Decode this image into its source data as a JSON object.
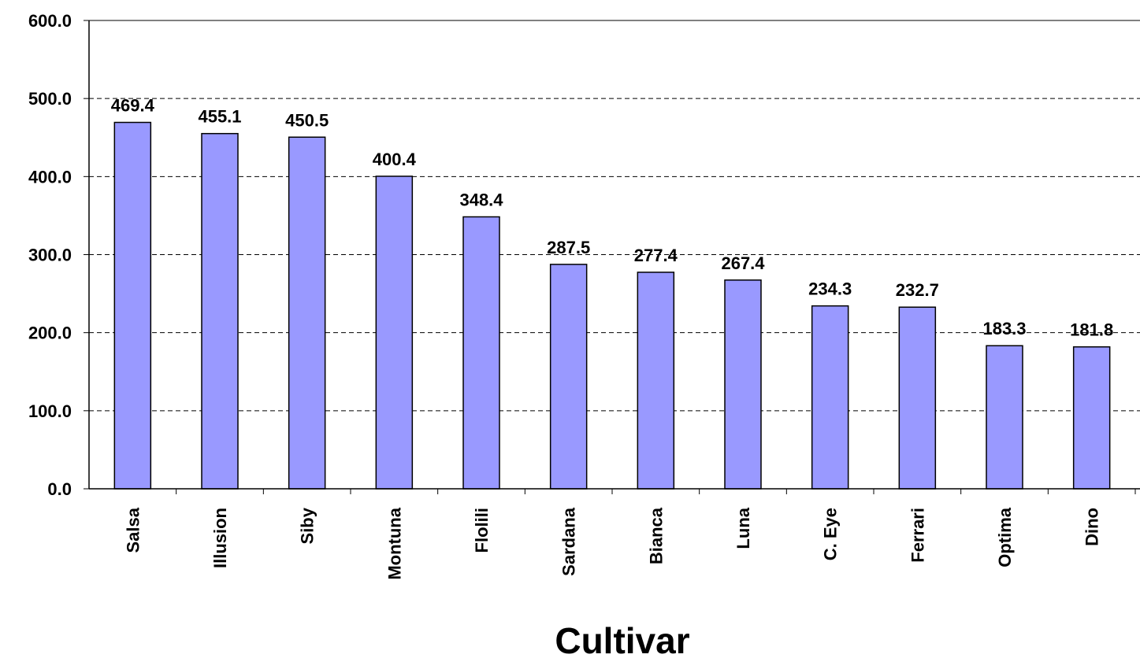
{
  "chart_data": {
    "type": "bar",
    "categories": [
      "Salsa",
      "Illusion",
      "Siby",
      "Montuna",
      "Flolili",
      "Sardana",
      "Bianca",
      "Luna",
      "C. Eye",
      "Ferrari",
      "Optima",
      "Dino"
    ],
    "values": [
      469.4,
      455.1,
      450.5,
      400.4,
      348.4,
      287.5,
      277.4,
      267.4,
      234.3,
      232.7,
      183.3,
      181.8
    ],
    "data_labels": [
      "469.4",
      "455.1",
      "450.5",
      "400.4",
      "348.4",
      "287.5",
      "277.4",
      "267.4",
      "234.3",
      "232.7",
      "183.3",
      "181.8"
    ],
    "title": "",
    "xlabel": "Cultivar",
    "ylabel": "",
    "ylim": [
      0,
      600
    ],
    "yticks": [
      0,
      100,
      200,
      300,
      400,
      500,
      600
    ],
    "ytick_labels": [
      "0.0",
      "100.0",
      "200.0",
      "300.0",
      "400.0",
      "500.0",
      "600.0"
    ],
    "grid": "horizontal dashed",
    "legend": "none",
    "colors": {
      "bar_fill": "#9999ff",
      "bar_stroke": "#000000",
      "grid": "#000000",
      "axis": "#000000"
    }
  }
}
